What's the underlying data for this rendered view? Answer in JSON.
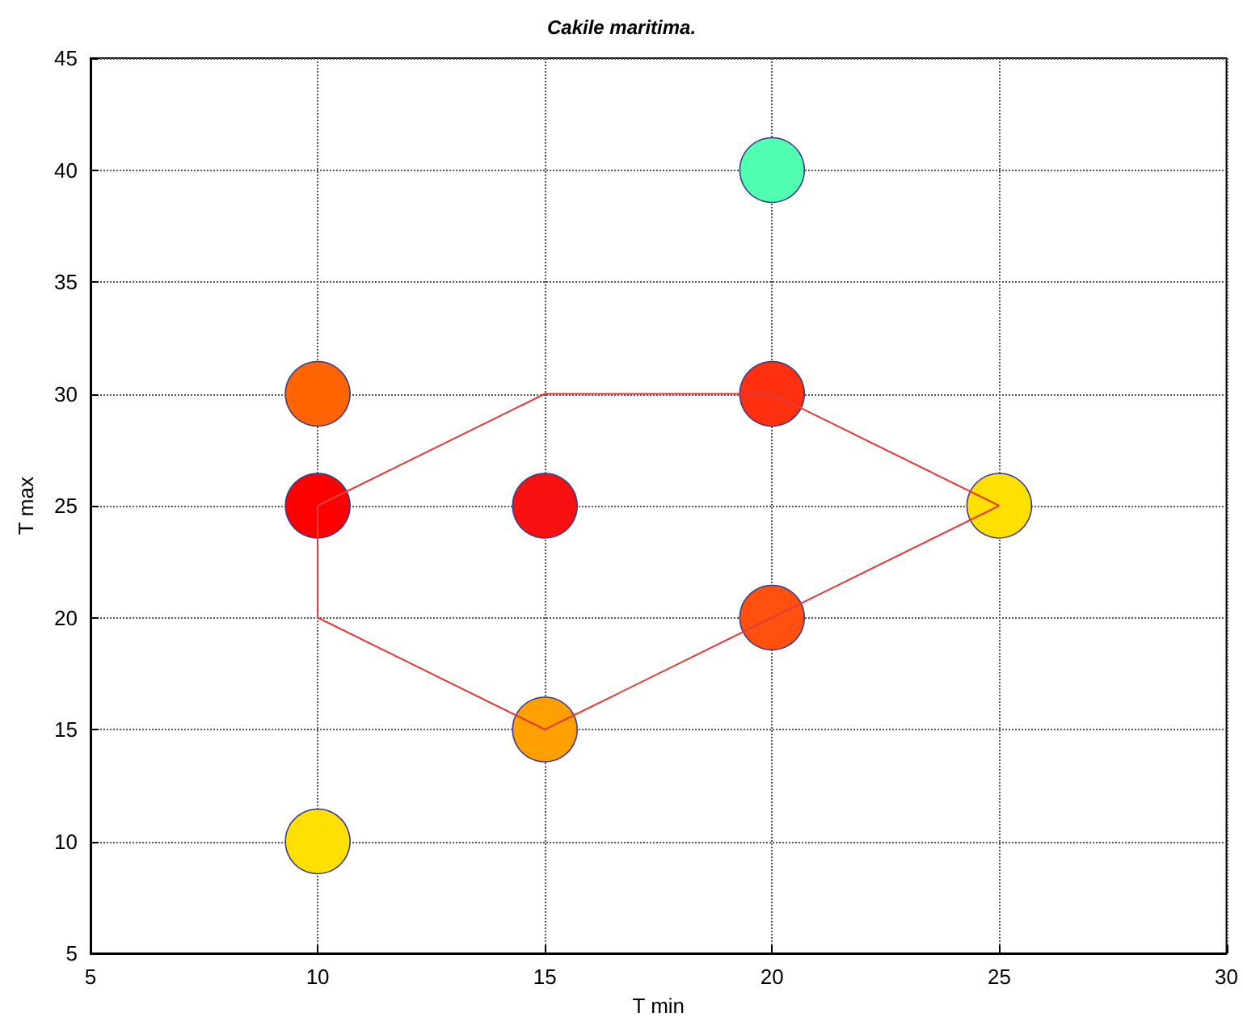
{
  "chart_data": {
    "type": "scatter",
    "title": "Cakile maritima.",
    "xlabel": "T min",
    "ylabel": "T max",
    "xlim": [
      5,
      30
    ],
    "xticks": [
      5,
      10,
      15,
      20,
      25,
      30
    ],
    "ylim": [
      5,
      45
    ],
    "yticks": [
      5,
      10,
      15,
      20,
      25,
      30,
      35,
      40,
      45
    ],
    "grid": true,
    "series": [
      {
        "type": "line",
        "marker": "none",
        "line_style": "solid",
        "color": "#e03c3c",
        "x": [
          10,
          15,
          20,
          25
        ],
        "values": [
          25,
          30,
          30,
          25
        ]
      },
      {
        "type": "line",
        "marker": "none",
        "line_style": "solid",
        "color": "#e03c3c",
        "x": [
          10,
          15,
          20,
          25
        ],
        "values": [
          20,
          15,
          20,
          25
        ]
      },
      {
        "type": "line",
        "marker": "none",
        "line_style": "solid",
        "color": "#e03c3c",
        "x": [
          10,
          10
        ],
        "values": [
          20,
          25
        ]
      },
      {
        "marker": "circle",
        "x": [
          10,
          10,
          15,
          20,
          20,
          20,
          25,
          15,
          10
        ],
        "values": [
          30,
          25,
          25,
          40,
          30,
          20,
          25,
          15,
          10
        ],
        "colors": [
          "#ff6400",
          "#ff0000",
          "#f81010",
          "#50ffb0",
          "#ff3010",
          "#ff5010",
          "#ffe000",
          "#ffa000",
          "#ffe000"
        ]
      }
    ]
  }
}
